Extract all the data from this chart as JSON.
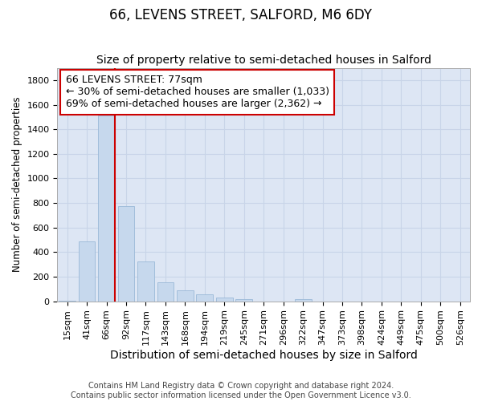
{
  "title": "66, LEVENS STREET, SALFORD, M6 6DY",
  "subtitle": "Size of property relative to semi-detached houses in Salford",
  "xlabel": "Distribution of semi-detached houses by size in Salford",
  "ylabel": "Number of semi-detached properties",
  "footer_line1": "Contains HM Land Registry data © Crown copyright and database right 2024.",
  "footer_line2": "Contains public sector information licensed under the Open Government Licence v3.0.",
  "categories": [
    "15sqm",
    "41sqm",
    "66sqm",
    "92sqm",
    "117sqm",
    "143sqm",
    "168sqm",
    "194sqm",
    "219sqm",
    "245sqm",
    "271sqm",
    "296sqm",
    "322sqm",
    "347sqm",
    "373sqm",
    "398sqm",
    "424sqm",
    "449sqm",
    "475sqm",
    "500sqm",
    "526sqm"
  ],
  "values": [
    5,
    490,
    1510,
    775,
    325,
    155,
    90,
    55,
    30,
    20,
    0,
    0,
    20,
    0,
    0,
    0,
    0,
    0,
    0,
    0,
    0
  ],
  "bar_color": "#c6d8ed",
  "bar_edge_color": "#9ab8d8",
  "vline_color": "#cc0000",
  "vline_bar_index": 2,
  "annotation_text": "66 LEVENS STREET: 77sqm\n← 30% of semi-detached houses are smaller (1,033)\n69% of semi-detached houses are larger (2,362) →",
  "annotation_box_color": "white",
  "annotation_box_edge_color": "#cc0000",
  "ylim": [
    0,
    1900
  ],
  "yticks": [
    0,
    200,
    400,
    600,
    800,
    1000,
    1200,
    1400,
    1600,
    1800
  ],
  "grid_color": "#c8d4e8",
  "background_color": "#dde6f4",
  "title_fontsize": 12,
  "subtitle_fontsize": 10,
  "xlabel_fontsize": 10,
  "ylabel_fontsize": 8.5,
  "tick_fontsize": 8,
  "annotation_fontsize": 9,
  "footer_fontsize": 7
}
